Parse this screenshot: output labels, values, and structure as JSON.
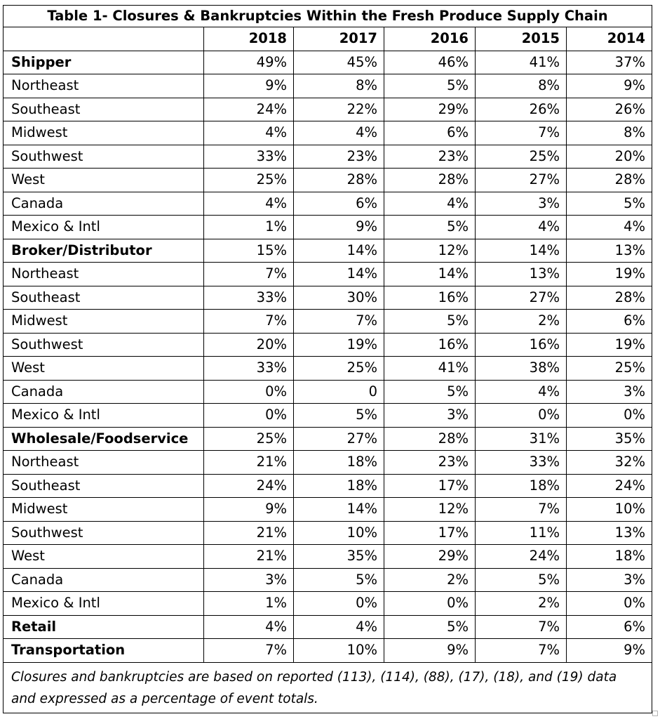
{
  "table": {
    "title": "Table 1- Closures & Bankruptcies Within the Fresh Produce Supply Chain",
    "corner_header": "",
    "years": [
      "2018",
      "2017",
      "2016",
      "2015",
      "2014"
    ],
    "rows": [
      {
        "label": "Shipper",
        "section": true,
        "values": [
          "49%",
          "45%",
          "46%",
          "41%",
          "37%"
        ]
      },
      {
        "label": "Northeast",
        "section": false,
        "values": [
          "9%",
          "8%",
          "5%",
          "8%",
          "9%"
        ]
      },
      {
        "label": "Southeast",
        "section": false,
        "values": [
          "24%",
          "22%",
          "29%",
          "26%",
          "26%"
        ]
      },
      {
        "label": "Midwest",
        "section": false,
        "values": [
          "4%",
          "4%",
          "6%",
          "7%",
          "8%"
        ]
      },
      {
        "label": "Southwest",
        "section": false,
        "values": [
          "33%",
          "23%",
          "23%",
          "25%",
          "20%"
        ]
      },
      {
        "label": "West",
        "section": false,
        "values": [
          "25%",
          "28%",
          "28%",
          "27%",
          "28%"
        ]
      },
      {
        "label": "Canada",
        "section": false,
        "values": [
          "4%",
          "6%",
          "4%",
          "3%",
          "5%"
        ]
      },
      {
        "label": "Mexico & Intl",
        "section": false,
        "values": [
          "1%",
          "9%",
          "5%",
          "4%",
          "4%"
        ]
      },
      {
        "label": "Broker/Distributor",
        "section": true,
        "values": [
          "15%",
          "14%",
          "12%",
          "14%",
          "13%"
        ]
      },
      {
        "label": "Northeast",
        "section": false,
        "values": [
          "7%",
          "14%",
          "14%",
          "13%",
          "19%"
        ]
      },
      {
        "label": "Southeast",
        "section": false,
        "values": [
          "33%",
          "30%",
          "16%",
          "27%",
          "28%"
        ]
      },
      {
        "label": "Midwest",
        "section": false,
        "values": [
          "7%",
          "7%",
          "5%",
          "2%",
          "6%"
        ]
      },
      {
        "label": "Southwest",
        "section": false,
        "values": [
          "20%",
          "19%",
          "16%",
          "16%",
          "19%"
        ]
      },
      {
        "label": "West",
        "section": false,
        "values": [
          "33%",
          "25%",
          "41%",
          "38%",
          "25%"
        ]
      },
      {
        "label": "Canada",
        "section": false,
        "values": [
          "0%",
          "0",
          "5%",
          "4%",
          "3%"
        ]
      },
      {
        "label": "Mexico & Intl",
        "section": false,
        "values": [
          "0%",
          "5%",
          "3%",
          "0%",
          "0%"
        ]
      },
      {
        "label": "Wholesale/Foodservice",
        "section": true,
        "values": [
          "25%",
          "27%",
          "28%",
          "31%",
          "35%"
        ]
      },
      {
        "label": "Northeast",
        "section": false,
        "values": [
          "21%",
          "18%",
          "23%",
          "33%",
          "32%"
        ]
      },
      {
        "label": "Southeast",
        "section": false,
        "values": [
          "24%",
          "18%",
          "17%",
          "18%",
          "24%"
        ]
      },
      {
        "label": "Midwest",
        "section": false,
        "values": [
          "9%",
          "14%",
          "12%",
          "7%",
          "10%"
        ]
      },
      {
        "label": "Southwest",
        "section": false,
        "values": [
          "21%",
          "10%",
          "17%",
          "11%",
          "13%"
        ]
      },
      {
        "label": "West",
        "section": false,
        "values": [
          "21%",
          "35%",
          "29%",
          "24%",
          "18%"
        ]
      },
      {
        "label": "Canada",
        "section": false,
        "values": [
          "3%",
          "5%",
          "2%",
          "5%",
          "3%"
        ]
      },
      {
        "label": "Mexico & Intl",
        "section": false,
        "values": [
          "1%",
          "0%",
          "0%",
          "2%",
          "0%"
        ]
      },
      {
        "label": "Retail",
        "section": true,
        "values": [
          "4%",
          "4%",
          "5%",
          "7%",
          "6%"
        ]
      },
      {
        "label": "Transportation",
        "section": true,
        "values": [
          "7%",
          "10%",
          "9%",
          "7%",
          "9%"
        ]
      }
    ],
    "footnote": "Closures and bankruptcies are based on reported (113), (114), (88), (17), (18), and (19) data and expressed as a percentage of event totals."
  }
}
